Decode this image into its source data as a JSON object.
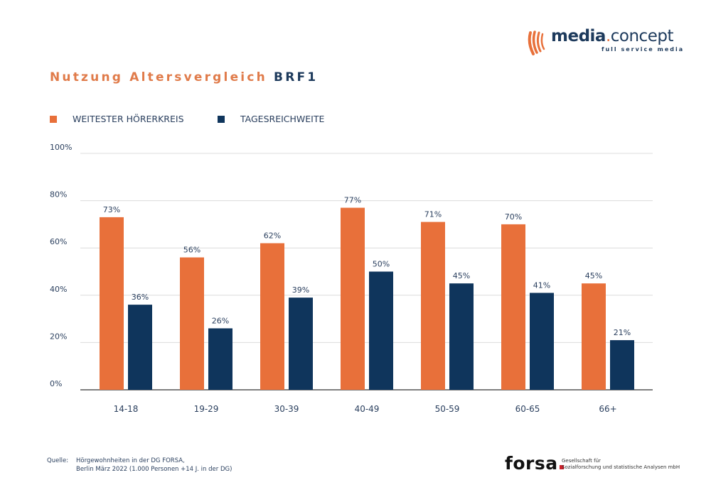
{
  "branding": {
    "logo_name_bold": "media",
    "logo_dot": ".",
    "logo_name_light": "concept",
    "logo_tagline": "full service media",
    "colors": {
      "orange": "#e8703a",
      "navy": "#0f355c"
    }
  },
  "title": {
    "part1": "Nutzung Altersvergleich",
    "part2": "BRF1"
  },
  "legend": [
    {
      "label": "WEITESTER HÖRERKREIS",
      "color": "#e8703a"
    },
    {
      "label": "TAGESREICHWEITE",
      "color": "#0f355c"
    }
  ],
  "chart_data": {
    "type": "bar",
    "title": "Nutzung Altersvergleich BRF1",
    "xlabel": "",
    "ylabel": "",
    "ylim": [
      0,
      100
    ],
    "yticks": [
      "0%",
      "20%",
      "40%",
      "60%",
      "80%",
      "100%"
    ],
    "grid": true,
    "legend_position": "top-left",
    "categories": [
      "14-18",
      "19-29",
      "30-39",
      "40-49",
      "50-59",
      "60-65",
      "66+"
    ],
    "series": [
      {
        "name": "WEITESTER HÖRERKREIS",
        "color": "#e8703a",
        "values": [
          73,
          56,
          62,
          77,
          71,
          70,
          45
        ],
        "labels": [
          "73%",
          "56%",
          "62%",
          "77%",
          "71%",
          "70%",
          "45%"
        ]
      },
      {
        "name": "TAGESREICHWEITE",
        "color": "#0f355c",
        "values": [
          36,
          26,
          39,
          50,
          45,
          41,
          21
        ],
        "labels": [
          "36%",
          "26%",
          "39%",
          "50%",
          "45%",
          "41%",
          "21%"
        ]
      }
    ]
  },
  "source": {
    "label": "Quelle:",
    "line1": "Hörgewohnheiten in der DG FORSA,",
    "line2": "Berlin März 2022 (1.000 Personen +14 J. in der DG)"
  },
  "forsa": {
    "name": "forsa",
    "line1": "Gesellschaft für",
    "line2": "Sozialforschung und statistische Analysen mbH"
  }
}
